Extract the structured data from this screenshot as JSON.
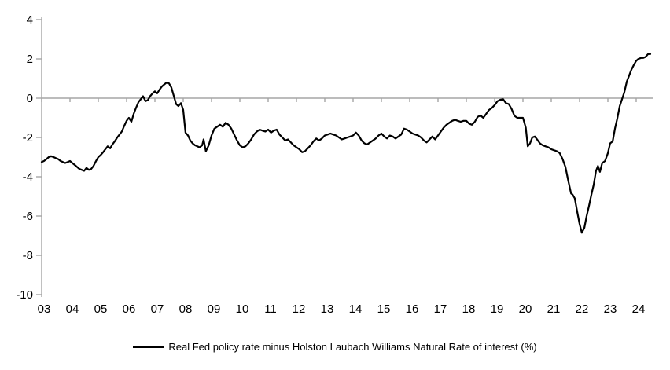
{
  "chart_data": {
    "type": "line",
    "title": "",
    "xlabel": "",
    "ylabel": "",
    "legend_label": "Real Fed policy rate minus Holston Laubach Williams Natural Rate of interest (%)",
    "legend_position": "bottom-center",
    "ylim": [
      -10,
      4
    ],
    "xlim": [
      2003,
      2024.6
    ],
    "y_ticks": [
      4,
      2,
      0,
      -2,
      -4,
      -6,
      -8,
      -10
    ],
    "x_tick_years": [
      2003,
      2004,
      2005,
      2006,
      2007,
      2008,
      2009,
      2010,
      2011,
      2012,
      2013,
      2014,
      2015,
      2016,
      2017,
      2018,
      2019,
      2020,
      2021,
      2022,
      2023,
      2024
    ],
    "x_tick_labels": [
      "03",
      "04",
      "05",
      "06",
      "07",
      "08",
      "09",
      "10",
      "11",
      "12",
      "13",
      "14",
      "15",
      "16",
      "17",
      "18",
      "19",
      "20",
      "21",
      "22",
      "23",
      "24"
    ],
    "grid": "zero-line-only",
    "line_color": "#000000",
    "axis_color": "#a6a6a6",
    "x": [
      2003.0,
      2003.08,
      2003.17,
      2003.25,
      2003.33,
      2003.42,
      2003.5,
      2003.58,
      2003.67,
      2003.75,
      2003.83,
      2003.92,
      2004.0,
      2004.08,
      2004.17,
      2004.25,
      2004.33,
      2004.42,
      2004.5,
      2004.58,
      2004.67,
      2004.75,
      2004.83,
      2004.92,
      2005.0,
      2005.08,
      2005.17,
      2005.25,
      2005.33,
      2005.42,
      2005.5,
      2005.58,
      2005.67,
      2005.75,
      2005.83,
      2005.92,
      2006.0,
      2006.08,
      2006.17,
      2006.25,
      2006.33,
      2006.42,
      2006.5,
      2006.58,
      2006.67,
      2006.75,
      2006.83,
      2006.92,
      2007.0,
      2007.08,
      2007.17,
      2007.25,
      2007.33,
      2007.42,
      2007.5,
      2007.58,
      2007.67,
      2007.75,
      2007.83,
      2007.92,
      2008.0,
      2008.08,
      2008.17,
      2008.25,
      2008.33,
      2008.42,
      2008.5,
      2008.58,
      2008.67,
      2008.72,
      2008.8,
      2008.9,
      2009.0,
      2009.1,
      2009.2,
      2009.3,
      2009.4,
      2009.5,
      2009.6,
      2009.7,
      2009.8,
      2009.9,
      2010.0,
      2010.1,
      2010.2,
      2010.3,
      2010.4,
      2010.5,
      2010.6,
      2010.7,
      2010.8,
      2010.9,
      2011.0,
      2011.1,
      2011.2,
      2011.3,
      2011.4,
      2011.5,
      2011.6,
      2011.7,
      2011.8,
      2011.9,
      2012.0,
      2012.1,
      2012.2,
      2012.3,
      2012.4,
      2012.5,
      2012.6,
      2012.7,
      2012.8,
      2012.9,
      2013.0,
      2013.1,
      2013.2,
      2013.3,
      2013.4,
      2013.5,
      2013.6,
      2013.7,
      2013.8,
      2013.9,
      2014.0,
      2014.1,
      2014.2,
      2014.3,
      2014.4,
      2014.5,
      2014.6,
      2014.7,
      2014.8,
      2014.9,
      2015.0,
      2015.1,
      2015.2,
      2015.3,
      2015.4,
      2015.5,
      2015.6,
      2015.7,
      2015.8,
      2015.9,
      2016.0,
      2016.1,
      2016.2,
      2016.3,
      2016.4,
      2016.5,
      2016.6,
      2016.7,
      2016.8,
      2016.9,
      2017.0,
      2017.1,
      2017.2,
      2017.3,
      2017.4,
      2017.5,
      2017.6,
      2017.7,
      2017.8,
      2017.9,
      2018.0,
      2018.1,
      2018.2,
      2018.3,
      2018.4,
      2018.5,
      2018.6,
      2018.7,
      2018.8,
      2018.9,
      2019.0,
      2019.1,
      2019.2,
      2019.3,
      2019.4,
      2019.5,
      2019.6,
      2019.7,
      2019.8,
      2019.9,
      2020.0,
      2020.1,
      2020.17,
      2020.25,
      2020.33,
      2020.42,
      2020.5,
      2020.6,
      2020.7,
      2020.8,
      2020.9,
      2021.0,
      2021.1,
      2021.2,
      2021.3,
      2021.4,
      2021.5,
      2021.6,
      2021.7,
      2021.75,
      2021.83,
      2021.92,
      2022.0,
      2022.08,
      2022.17,
      2022.25,
      2022.33,
      2022.42,
      2022.5,
      2022.58,
      2022.65,
      2022.72,
      2022.8,
      2022.9,
      2023.0,
      2023.08,
      2023.17,
      2023.25,
      2023.33,
      2023.42,
      2023.5,
      2023.58,
      2023.67,
      2023.75,
      2023.83,
      2023.92,
      2024.0,
      2024.08,
      2024.17,
      2024.25,
      2024.33,
      2024.42,
      2024.5
    ],
    "y": [
      -3.25,
      -3.2,
      -3.1,
      -3.0,
      -2.95,
      -3.0,
      -3.05,
      -3.1,
      -3.2,
      -3.25,
      -3.3,
      -3.25,
      -3.2,
      -3.3,
      -3.4,
      -3.5,
      -3.6,
      -3.65,
      -3.7,
      -3.55,
      -3.65,
      -3.6,
      -3.45,
      -3.2,
      -3.0,
      -2.9,
      -2.75,
      -2.6,
      -2.45,
      -2.55,
      -2.35,
      -2.2,
      -2.0,
      -1.85,
      -1.7,
      -1.4,
      -1.15,
      -1.0,
      -1.2,
      -0.8,
      -0.5,
      -0.2,
      -0.05,
      0.1,
      -0.15,
      -0.1,
      0.1,
      0.25,
      0.35,
      0.25,
      0.45,
      0.6,
      0.7,
      0.8,
      0.75,
      0.55,
      0.1,
      -0.3,
      -0.4,
      -0.25,
      -0.6,
      -1.75,
      -1.9,
      -2.15,
      -2.3,
      -2.4,
      -2.45,
      -2.5,
      -2.4,
      -2.1,
      -2.7,
      -2.4,
      -1.9,
      -1.55,
      -1.45,
      -1.35,
      -1.45,
      -1.25,
      -1.35,
      -1.55,
      -1.85,
      -2.15,
      -2.4,
      -2.5,
      -2.45,
      -2.3,
      -2.1,
      -1.85,
      -1.7,
      -1.6,
      -1.65,
      -1.7,
      -1.6,
      -1.75,
      -1.65,
      -1.6,
      -1.85,
      -2.0,
      -2.15,
      -2.1,
      -2.25,
      -2.4,
      -2.5,
      -2.6,
      -2.75,
      -2.7,
      -2.55,
      -2.4,
      -2.2,
      -2.05,
      -2.15,
      -2.05,
      -1.9,
      -1.85,
      -1.8,
      -1.85,
      -1.9,
      -2.0,
      -2.1,
      -2.05,
      -2.0,
      -1.95,
      -1.9,
      -1.75,
      -1.9,
      -2.15,
      -2.3,
      -2.35,
      -2.25,
      -2.15,
      -2.05,
      -1.9,
      -1.8,
      -1.95,
      -2.05,
      -1.9,
      -1.95,
      -2.05,
      -1.95,
      -1.85,
      -1.55,
      -1.6,
      -1.7,
      -1.8,
      -1.85,
      -1.9,
      -2.0,
      -2.15,
      -2.25,
      -2.1,
      -1.95,
      -2.1,
      -1.9,
      -1.7,
      -1.5,
      -1.35,
      -1.25,
      -1.15,
      -1.1,
      -1.15,
      -1.2,
      -1.15,
      -1.15,
      -1.3,
      -1.35,
      -1.2,
      -0.95,
      -0.88,
      -1.0,
      -0.8,
      -0.6,
      -0.5,
      -0.35,
      -0.15,
      -0.08,
      -0.05,
      -0.25,
      -0.3,
      -0.55,
      -0.9,
      -1.0,
      -1.0,
      -1.0,
      -1.5,
      -2.45,
      -2.3,
      -2.0,
      -1.95,
      -2.1,
      -2.3,
      -2.4,
      -2.45,
      -2.5,
      -2.6,
      -2.65,
      -2.7,
      -2.8,
      -3.1,
      -3.5,
      -4.2,
      -4.85,
      -4.9,
      -5.1,
      -5.8,
      -6.4,
      -6.85,
      -6.6,
      -6.0,
      -5.5,
      -4.9,
      -4.4,
      -3.7,
      -3.45,
      -3.75,
      -3.3,
      -3.2,
      -2.8,
      -2.3,
      -2.2,
      -1.55,
      -1.05,
      -0.4,
      -0.05,
      0.3,
      0.85,
      1.15,
      1.45,
      1.7,
      1.9,
      2.0,
      2.05,
      2.05,
      2.1,
      2.25,
      2.25
    ]
  }
}
